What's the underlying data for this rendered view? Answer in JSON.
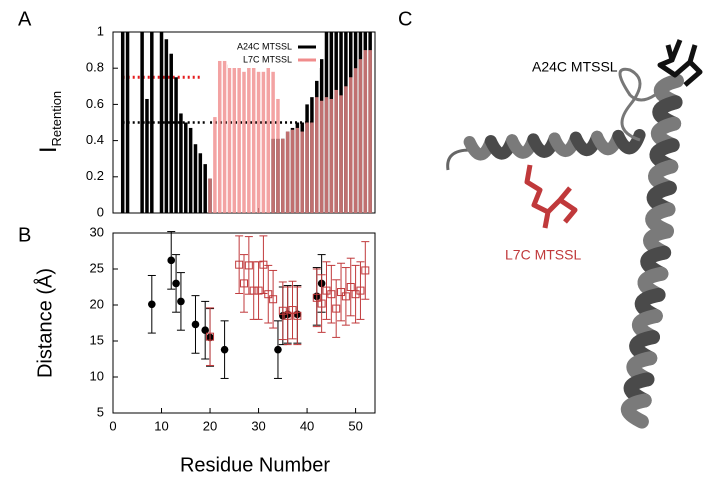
{
  "chart_data": [
    {
      "type": "bar",
      "panel": "A",
      "ylabel": "I",
      "ylabel_sub": "Retention",
      "x": [
        2,
        3,
        4,
        5,
        6,
        7,
        8,
        9,
        10,
        11,
        12,
        13,
        14,
        15,
        16,
        17,
        18,
        19,
        20,
        21,
        22,
        23,
        24,
        25,
        26,
        27,
        28,
        29,
        30,
        31,
        32,
        33,
        34,
        35,
        36,
        37,
        38,
        39,
        40,
        41,
        42,
        43,
        44,
        45,
        46,
        47,
        48,
        49,
        50,
        51,
        52,
        53
      ],
      "series": [
        {
          "name": "A24C MTSSL",
          "color": "#000000",
          "values": [
            1,
            1,
            null,
            null,
            1,
            0.63,
            1,
            null,
            1,
            0.96,
            0.88,
            0.75,
            0.55,
            0.5,
            0.47,
            0.38,
            0.33,
            0.27,
            0.19,
            null,
            null,
            null,
            null,
            null,
            null,
            null,
            null,
            null,
            null,
            null,
            null,
            0.41,
            0.41,
            0.41,
            0.45,
            0.47,
            0.5,
            0.5,
            0.6,
            0.64,
            0.73,
            0.85,
            1,
            1,
            1,
            1,
            1,
            1,
            1,
            1,
            1,
            1
          ]
        },
        {
          "name": "L7C MTSSL",
          "color": "#f08c8c",
          "values": [
            null,
            null,
            null,
            null,
            null,
            null,
            null,
            null,
            null,
            null,
            null,
            null,
            null,
            null,
            null,
            null,
            null,
            null,
            0.19,
            0.53,
            0.84,
            0.84,
            0.82,
            0.84,
            0.82,
            0.78,
            0.81,
            0.84,
            0.78,
            0.78,
            0.84,
            0.78,
            0.63,
            0.41,
            0.45,
            0.46,
            0.47,
            0.45,
            0.5,
            0.5,
            0.64,
            0.62,
            0.64,
            0.63,
            0.68,
            0.65,
            0.7,
            0.75,
            0.8,
            0.85,
            0.9,
            0.9
          ]
        }
      ],
      "reference_lines": [
        {
          "y": 0.75,
          "xrange": [
            2,
            18
          ],
          "color": "#e41a1c"
        },
        {
          "y": 0.5,
          "xrange": [
            2,
            19
          ],
          "color": "#000000"
        },
        {
          "y": 0.5,
          "xrange": [
            20,
            42
          ],
          "color": "#000000"
        }
      ],
      "xlim": [
        0,
        54
      ],
      "xticks": [
        0,
        10,
        20,
        30,
        40,
        50
      ],
      "ylim": [
        0,
        1
      ],
      "yticks": [
        0,
        0.2,
        0.4,
        0.6,
        0.8,
        1
      ],
      "legend": "upper right"
    },
    {
      "type": "scatter",
      "panel": "B",
      "xlabel": "Residue Number",
      "ylabel": "Distance (Å)",
      "series": [
        {
          "color": "#000000",
          "marker": "circle",
          "x": [
            8,
            12,
            13,
            14,
            17,
            19,
            20,
            23,
            34,
            35,
            36,
            38,
            42,
            43
          ],
          "values": [
            20.1,
            26.2,
            23,
            20.5,
            17.3,
            16.5,
            15.5,
            13.8,
            13.8,
            18.5,
            18.7,
            18.7,
            21.2,
            23
          ],
          "errors": [
            4,
            4,
            4,
            4,
            4,
            4,
            4,
            4,
            4,
            4,
            4,
            4,
            4,
            4
          ]
        },
        {
          "color": "#c0393b",
          "marker": "square",
          "x": [
            20,
            26,
            27,
            28,
            29,
            30,
            31,
            32,
            33,
            35,
            36,
            37,
            38,
            42,
            43,
            44,
            45,
            46,
            47,
            48,
            49,
            50,
            51,
            52
          ],
          "values": [
            15.6,
            25.6,
            23,
            25.5,
            22,
            22,
            25.6,
            21.5,
            20.8,
            19.2,
            18.5,
            19.3,
            18.5,
            21,
            20.2,
            22,
            21.5,
            19.5,
            21.8,
            21.2,
            22.5,
            21.5,
            22,
            24.8
          ],
          "errors": [
            4,
            4,
            4,
            4,
            4,
            4,
            4,
            4,
            4,
            4,
            4,
            4,
            4,
            4,
            4,
            4,
            4,
            4,
            4,
            4,
            4,
            4,
            4,
            4
          ]
        }
      ],
      "xlim": [
        0,
        54
      ],
      "xticks": [
        0,
        10,
        20,
        30,
        40,
        50
      ],
      "ylim": [
        5,
        30
      ],
      "yticks": [
        5,
        10,
        15,
        20,
        25,
        30
      ]
    }
  ],
  "structure": {
    "panel": "C",
    "labels": [
      {
        "text": "A24C MTSSL",
        "color": "#000000"
      },
      {
        "text": "L7C MTSSL",
        "color": "#c0393b"
      }
    ]
  }
}
